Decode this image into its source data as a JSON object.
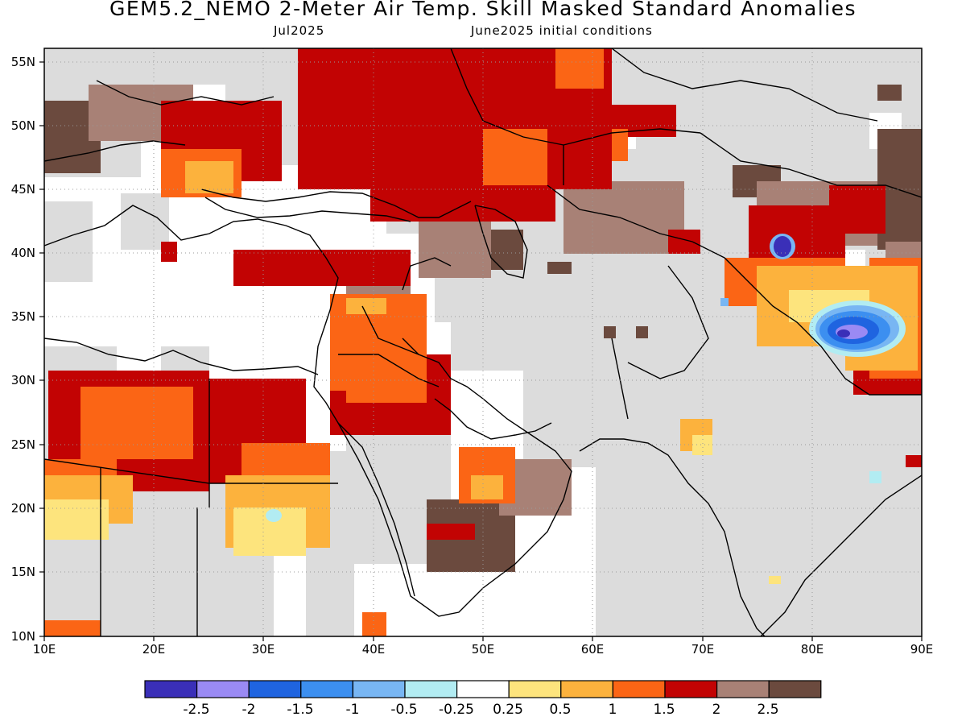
{
  "header": {
    "title": "GEM5.2_NEMO 2-Meter Air Temp. Skill Masked Standard Anomalies",
    "valid_month": "Jul2025",
    "init_conditions": "June2025 initial conditions"
  },
  "axes": {
    "lat_labels": [
      "55N",
      "50N",
      "45N",
      "40N",
      "35N",
      "30N",
      "25N",
      "20N",
      "15N",
      "10N"
    ],
    "lon_labels": [
      "10E",
      "20E",
      "30E",
      "40E",
      "50E",
      "60E",
      "70E",
      "80E",
      "90E"
    ]
  },
  "colorbar": {
    "labels": [
      "-2.5",
      "-2",
      "-1.5",
      "-1",
      "-0.5",
      "-0.25",
      "0.25",
      "0.5",
      "1",
      "1.5",
      "2",
      "2.5"
    ],
    "colors": [
      "#3a2fb8",
      "#9a8af4",
      "#1f64e0",
      "#3c8ff0",
      "#78b6f3",
      "#b2ecf2",
      "#ffffff",
      "#fde47d",
      "#fcb23d",
      "#fb6515",
      "#c20303",
      "#a88176",
      "#6b4a3e"
    ]
  },
  "map": {
    "land_gray": "#dcdcdc"
  }
}
